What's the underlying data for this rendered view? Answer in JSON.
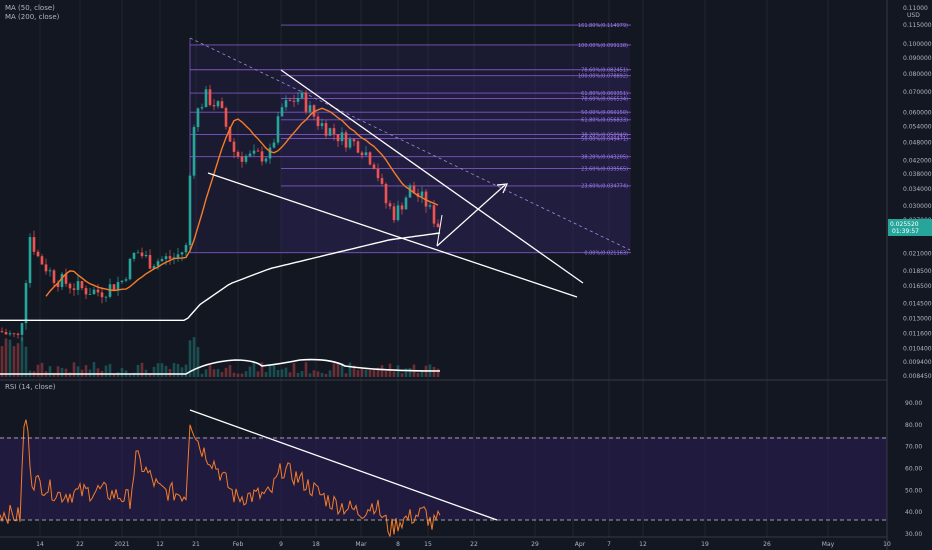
{
  "colors": {
    "background": "#131722",
    "grid": "#2a2e39",
    "fib": "#7e57c2",
    "fib_text": "#9c7cf0",
    "up": "#26a69a",
    "down": "#ef5350",
    "ma50": "#f57c2a",
    "ma200": "#ffffff",
    "rsi": "#f57c2a",
    "rsi_band": "#311b6a",
    "drawing": "#ffffff",
    "price_tag": "#26a69a"
  },
  "indicator_labels": {
    "ma50": "MA (50, close)",
    "ma200": "MA (200, close)",
    "rsi": "RSI (14, close)"
  },
  "price_axis": {
    "currency": "USD",
    "ticks": [
      "0.115000",
      "0.100000",
      "0.090000",
      "0.080000",
      "0.070000",
      "0.060000",
      "0.054000",
      "0.048000",
      "0.042000",
      "0.038000",
      "0.034000",
      "0.030000",
      "0.027000",
      "0.021000",
      "0.018500",
      "0.016500",
      "0.014500",
      "0.013000",
      "0.011600",
      "0.010400",
      "0.009400",
      "0.008450"
    ],
    "current_price": "0.025520",
    "countdown": "01:39:57",
    "top_value": "0.11000"
  },
  "rsi_axis": {
    "ticks": [
      "90.00",
      "80.00",
      "70.00",
      "60.00",
      "50.00",
      "40.00",
      "30.00"
    ],
    "overbought": 70,
    "oversold": 30
  },
  "time_axis": {
    "ticks": [
      "14",
      "22",
      "2021",
      "12",
      "21",
      "Feb",
      "9",
      "18",
      "Mar",
      "8",
      "15",
      "22",
      "29",
      "Apr",
      "7",
      "12",
      "19",
      "26",
      "May",
      "10"
    ]
  },
  "fib_labels": [
    "161.80%(0.114979)",
    "100.00%(0.099138)",
    "78.60%(0.082451)",
    "100.00%(0.078892)",
    "61.80%(0.069351)",
    "78.60%(0.066534)",
    "50.00%(0.060150)",
    "61.80%(0.056833)",
    "38.20%(0.050949)",
    "50.00%(0.049471)",
    "38.20%(0.043205)",
    "23.60%(0.039565)",
    "23.60%(0.034774)",
    "0.00%(0.021163)"
  ],
  "chart_data": {
    "type": "candlestick",
    "title": "",
    "price_scale": "log",
    "ylim": [
      0.0084,
      0.115
    ],
    "rsi_ylim": [
      25,
      95
    ],
    "fib_levels": [
      0.114979,
      0.099138,
      0.082451,
      0.078892,
      0.069351,
      0.066534,
      0.06015,
      0.056833,
      0.050949,
      0.049471,
      0.043205,
      0.039565,
      0.034774,
      0.021163
    ],
    "last_price": 0.02552,
    "indicators": [
      "MA (50, close)",
      "MA (200, close)",
      "RSI (14, close)"
    ],
    "rsi_levels": [
      70,
      30
    ],
    "grid": true,
    "legend_placement": "top-left"
  }
}
